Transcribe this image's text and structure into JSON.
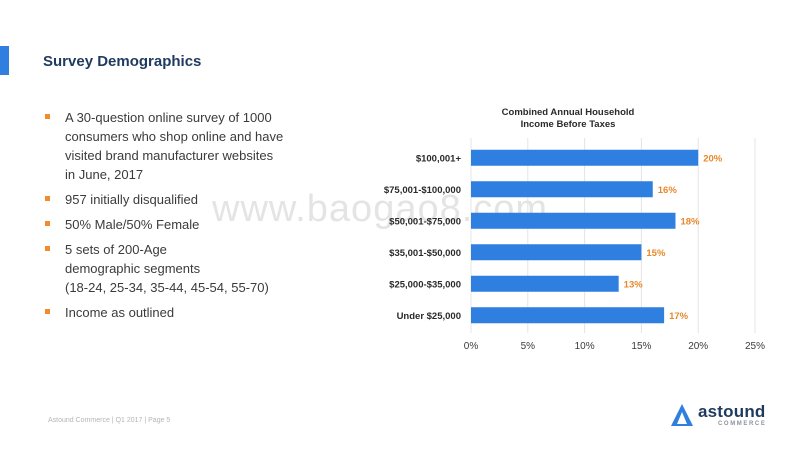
{
  "slide": {
    "title": "Survey Demographics",
    "accent_color": "#2f7fe0",
    "bullet_color": "#f28a2e"
  },
  "bullets": [
    {
      "lines": [
        "A 30-question online survey of 1000",
        "consumers who shop online and have",
        "visited brand manufacturer websites",
        "in June, 2017"
      ]
    },
    {
      "lines": [
        "957 initially disqualified"
      ]
    },
    {
      "lines": [
        "50% Male/50% Female"
      ]
    },
    {
      "lines": [
        "5 sets of 200-Age",
        "demographic segments",
        "(18-24, 25-34, 35-44, 45-54, 55-70)"
      ]
    },
    {
      "lines": [
        "Income as outlined"
      ]
    }
  ],
  "watermark": "www.baogao8.com",
  "chart_data": {
    "type": "bar",
    "orientation": "horizontal",
    "title": [
      "Combined Annual Household",
      "Income Before Taxes"
    ],
    "categories": [
      "$100,001+",
      "$75,001-$100,000",
      "$50,001-$75,000",
      "$35,001-$50,000",
      "$25,000-$35,000",
      "Under $25,000"
    ],
    "values": [
      20,
      16,
      18,
      15,
      13,
      17
    ],
    "data_labels": [
      "20%",
      "16%",
      "18%",
      "15%",
      "13%",
      "17%"
    ],
    "xlim": [
      0,
      25
    ],
    "xticks": [
      0,
      5,
      10,
      15,
      20,
      25
    ],
    "xtick_labels": [
      "0%",
      "5%",
      "10%",
      "15%",
      "20%",
      "25%"
    ],
    "grid": true,
    "legend": "none",
    "bar_color": "#2f7fe0",
    "label_color": "#e8882c"
  },
  "footer": "Astound Commerce | Q1 2017 | Page 5",
  "logo": {
    "word": "astound",
    "sub": "COMMERCE",
    "color": "#1f3a5f",
    "mark_color": "#2f7fe0"
  }
}
